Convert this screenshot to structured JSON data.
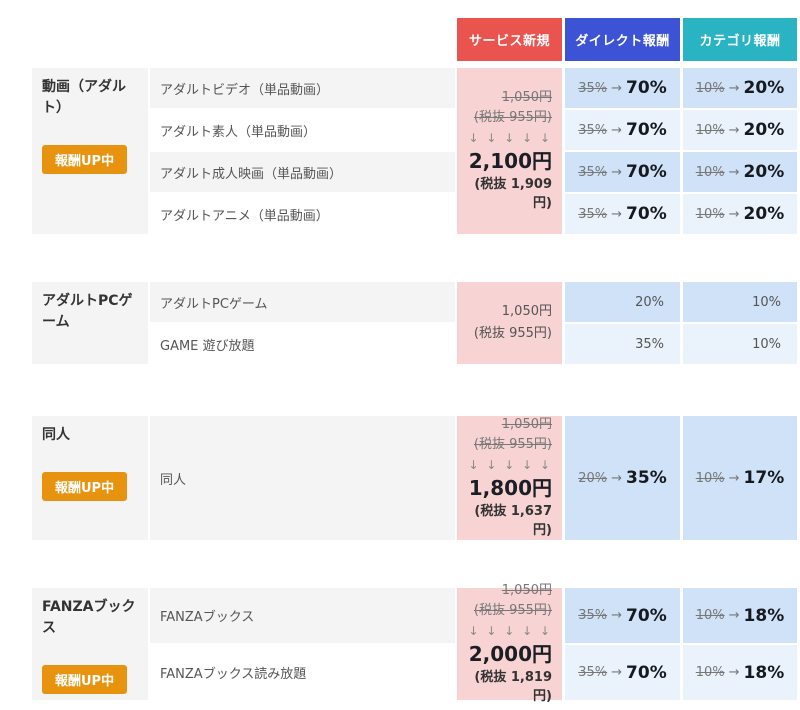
{
  "glyphs": {
    "percent_arrow": "→",
    "down_arrows": "↓ ↓ ↓ ↓ ↓"
  },
  "colors": {
    "header_red": "#ea544e",
    "header_blue": "#3d53d6",
    "header_teal": "#2ab3c3",
    "badge_orange": "#e8930f",
    "pink_cell": "#f8d3d3",
    "blue_row_odd": "#cfe2f8",
    "blue_row_even": "#eaf3fb",
    "gray_row": "#f4f4f4"
  },
  "header": {
    "columns": [
      {
        "label": "サービス新規"
      },
      {
        "label": "ダイレクト報酬"
      },
      {
        "label": "カテゴリ報酬"
      }
    ]
  },
  "badge_label": "報酬UP中",
  "sections": [
    {
      "title": "動画（アダルト）",
      "badge": true,
      "rows": [
        {
          "label": "アダルトビデオ（単品動画）"
        },
        {
          "label": "アダルト素人（単品動画）"
        },
        {
          "label": "アダルト成人映画（単品動画）"
        },
        {
          "label": "アダルトアニメ（単品動画）"
        }
      ],
      "price": {
        "type": "upgrade",
        "old": "1,050円",
        "old_tax": "(税抜 955円)",
        "new": "2,100円",
        "new_tax": "(税抜 1,909円)"
      },
      "direct": [
        {
          "old": "35%",
          "new": "70%"
        },
        {
          "old": "35%",
          "new": "70%"
        },
        {
          "old": "35%",
          "new": "70%"
        },
        {
          "old": "35%",
          "new": "70%"
        }
      ],
      "category_reward": [
        {
          "old": "10%",
          "new": "20%"
        },
        {
          "old": "10%",
          "new": "20%"
        },
        {
          "old": "10%",
          "new": "20%"
        },
        {
          "old": "10%",
          "new": "20%"
        }
      ]
    },
    {
      "title": "アダルトPCゲーム",
      "badge": false,
      "rows": [
        {
          "label": "アダルトPCゲーム"
        },
        {
          "label": "GAME 遊び放題"
        }
      ],
      "price": {
        "type": "plain",
        "current": "1,050円",
        "tax": "(税抜 955円)"
      },
      "direct": [
        {
          "value": "20%"
        },
        {
          "value": "35%"
        }
      ],
      "category_reward": [
        {
          "value": "10%"
        },
        {
          "value": "10%"
        }
      ]
    },
    {
      "title": "同人",
      "badge": true,
      "rows": [
        {
          "label": "同人"
        }
      ],
      "price": {
        "type": "upgrade",
        "old": "1,050円",
        "old_tax": "(税抜 955円)",
        "new": "1,800円",
        "new_tax": "(税抜 1,637円)"
      },
      "direct": [
        {
          "old": "20%",
          "new": "35%"
        }
      ],
      "category_reward": [
        {
          "old": "10%",
          "new": "17%"
        }
      ]
    },
    {
      "title": "FANZAブックス",
      "badge": true,
      "rows": [
        {
          "label": "FANZAブックス"
        },
        {
          "label": "FANZAブックス読み放題"
        }
      ],
      "price": {
        "type": "upgrade",
        "old": "1,050円",
        "old_tax": "(税抜 955円)",
        "new": "2,000円",
        "new_tax": "(税抜 1,819円)"
      },
      "direct": [
        {
          "old": "35%",
          "new": "70%"
        },
        {
          "old": "35%",
          "new": "70%"
        }
      ],
      "category_reward": [
        {
          "old": "10%",
          "new": "18%"
        },
        {
          "old": "10%",
          "new": "18%"
        }
      ]
    }
  ]
}
